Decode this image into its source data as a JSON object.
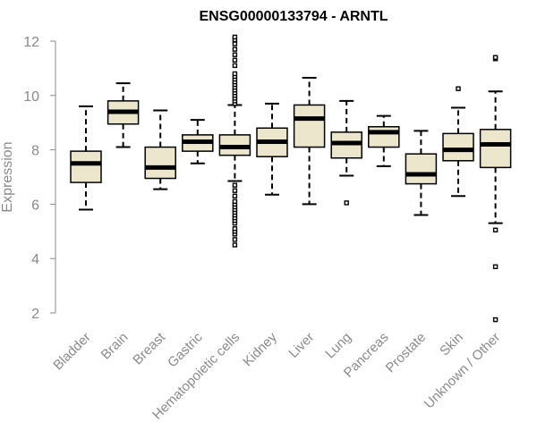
{
  "chart_data": {
    "type": "boxplot",
    "title": "ENSG00000133794 - ARNTL",
    "xlabel": "",
    "ylabel": "Expression",
    "ylim": [
      1.5,
      12.3
    ],
    "yticks": [
      2,
      4,
      6,
      8,
      10,
      12
    ],
    "grid": false,
    "legend": "none",
    "colors": {
      "box_fill": "#ece6cc",
      "stroke": "#000000",
      "axis": "#8a8a8a"
    },
    "categories": [
      "Bladder",
      "Brain",
      "Breast",
      "Gastric",
      "Hematopoietic cells",
      "Kidney",
      "Liver",
      "Lung",
      "Pancreas",
      "Prostate",
      "Skin",
      "Unknown / Other"
    ],
    "boxes": [
      {
        "category": "Bladder",
        "whisker_low": 5.8,
        "q1": 6.8,
        "median": 7.5,
        "q3": 7.95,
        "whisker_high": 9.6,
        "outliers": []
      },
      {
        "category": "Brain",
        "whisker_low": 8.1,
        "q1": 8.95,
        "median": 9.4,
        "q3": 9.8,
        "whisker_high": 10.45,
        "outliers": []
      },
      {
        "category": "Breast",
        "whisker_low": 6.55,
        "q1": 6.95,
        "median": 7.35,
        "q3": 8.1,
        "whisker_high": 9.45,
        "outliers": []
      },
      {
        "category": "Gastric",
        "whisker_low": 7.5,
        "q1": 7.95,
        "median": 8.3,
        "q3": 8.55,
        "whisker_high": 9.1,
        "outliers": []
      },
      {
        "category": "Hematopoietic cells",
        "whisker_low": 6.85,
        "q1": 7.8,
        "median": 8.1,
        "q3": 8.55,
        "whisker_high": 9.65,
        "outliers": [
          4.5,
          4.7,
          4.9,
          5.0,
          5.1,
          5.3,
          5.4,
          5.5,
          5.6,
          5.7,
          5.8,
          5.9,
          6.0,
          6.1,
          6.3,
          6.5,
          6.7,
          9.7,
          9.8,
          9.9,
          10.0,
          10.1,
          10.2,
          10.3,
          10.4,
          10.5,
          10.6,
          10.7,
          10.8,
          11.1,
          11.3,
          11.5,
          11.7,
          11.9,
          12.05,
          12.15
        ]
      },
      {
        "category": "Kidney",
        "whisker_low": 6.35,
        "q1": 7.75,
        "median": 8.3,
        "q3": 8.8,
        "whisker_high": 9.7,
        "outliers": []
      },
      {
        "category": "Liver",
        "whisker_low": 6.0,
        "q1": 8.1,
        "median": 9.15,
        "q3": 9.65,
        "whisker_high": 10.65,
        "outliers": []
      },
      {
        "category": "Lung",
        "whisker_low": 7.05,
        "q1": 7.7,
        "median": 8.25,
        "q3": 8.65,
        "whisker_high": 9.8,
        "outliers": [
          6.05
        ]
      },
      {
        "category": "Pancreas",
        "whisker_low": 7.4,
        "q1": 8.1,
        "median": 8.65,
        "q3": 8.85,
        "whisker_high": 9.25,
        "outliers": []
      },
      {
        "category": "Prostate",
        "whisker_low": 5.6,
        "q1": 6.75,
        "median": 7.1,
        "q3": 7.85,
        "whisker_high": 8.7,
        "outliers": []
      },
      {
        "category": "Skin",
        "whisker_low": 6.3,
        "q1": 7.6,
        "median": 8.0,
        "q3": 8.6,
        "whisker_high": 9.55,
        "outliers": [
          10.25
        ]
      },
      {
        "category": "Unknown / Other",
        "whisker_low": 5.3,
        "q1": 7.35,
        "median": 8.2,
        "q3": 8.75,
        "whisker_high": 10.15,
        "outliers": [
          1.75,
          3.7,
          5.05,
          11.35,
          11.4
        ]
      }
    ]
  }
}
